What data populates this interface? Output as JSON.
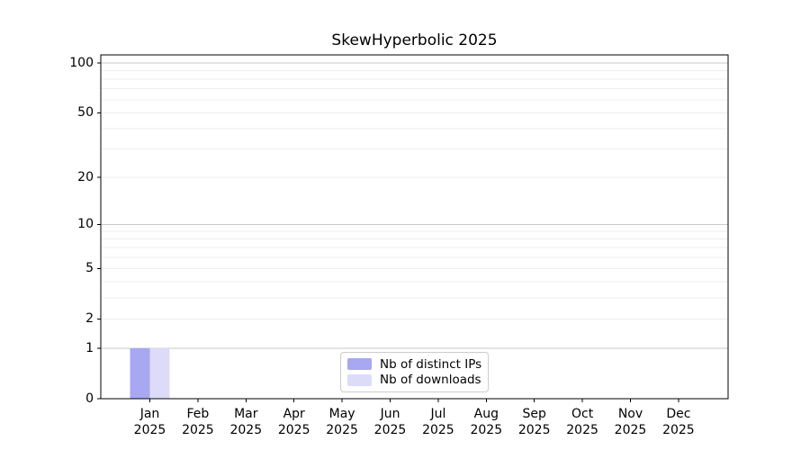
{
  "title": "SkewHyperbolic 2025",
  "chart_data": {
    "type": "bar",
    "title": "SkewHyperbolic 2025",
    "x_categories_months": [
      "Jan",
      "Feb",
      "Mar",
      "Apr",
      "May",
      "Jun",
      "Jul",
      "Aug",
      "Sep",
      "Oct",
      "Nov",
      "Dec"
    ],
    "x_year_label": "2025",
    "series": [
      {
        "name": "Nb of distinct IPs",
        "color": "#a7a7f2",
        "values": [
          1,
          0,
          0,
          0,
          0,
          0,
          0,
          0,
          0,
          0,
          0,
          0
        ]
      },
      {
        "name": "Nb of downloads",
        "color": "#dcdcf9",
        "values": [
          1,
          0,
          0,
          0,
          0,
          0,
          0,
          0,
          0,
          0,
          0,
          0
        ]
      }
    ],
    "y_axis": {
      "scale": "log10(1+value)",
      "tick_labels": [
        0,
        1,
        2,
        5,
        10,
        20,
        50,
        100
      ],
      "minor_gridlines": [
        2,
        3,
        4,
        5,
        6,
        7,
        8,
        9,
        20,
        30,
        40,
        50,
        60,
        70,
        80,
        90
      ],
      "major_gridlines": [
        1,
        10,
        100
      ],
      "range_max": 112
    },
    "legend": {
      "position": "lower center",
      "entries": [
        "Nb of distinct IPs",
        "Nb of downloads"
      ]
    },
    "grid": true
  },
  "colors": {
    "background": "#ffffff",
    "spine": "#000000",
    "grid_minor": "#ededed",
    "grid_major": "#c8c8c8",
    "text": "#000000",
    "legend_border": "#cccccc"
  }
}
